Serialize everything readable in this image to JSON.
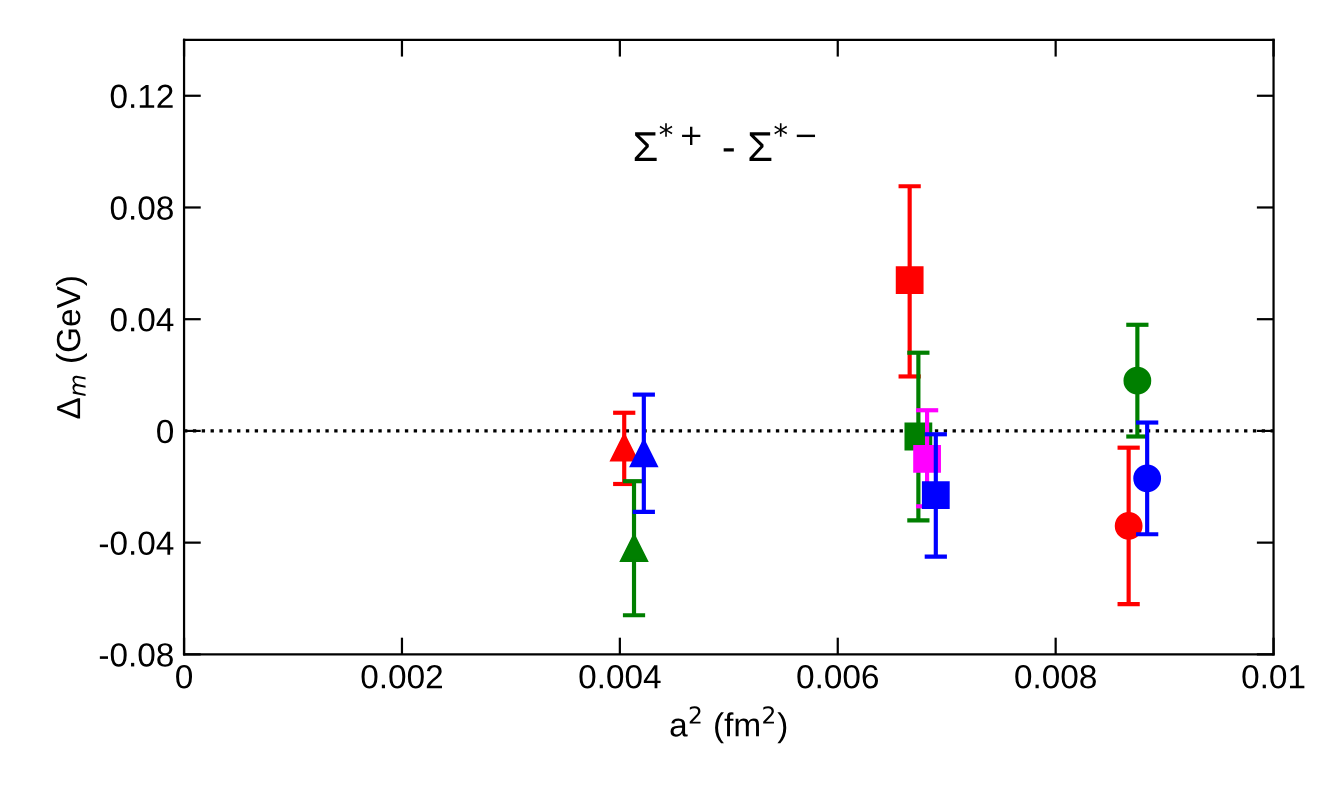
{
  "chart_data": {
    "type": "scatter",
    "title": "Σ$^{*+}$ - Σ$^{*−}$",
    "xlabel": "a$^{2}$ (fm$^{2}$)",
    "ylabel": "Δ$_{m}$ (GeV)",
    "xlim": [
      0,
      0.01
    ],
    "ylim": [
      -0.08,
      0.14
    ],
    "xticks": [
      0,
      {
        "value": 0.002,
        "label": "0.002"
      },
      {
        "value": 0.004,
        "label": "0.004"
      },
      {
        "value": 0.006,
        "label": "0.006"
      },
      {
        "value": 0.008,
        "label": "0.008"
      },
      {
        "value": 0.01,
        "label": "0.01"
      }
    ],
    "yticks": [
      {
        "value": -0.08,
        "label": "-0.08"
      },
      {
        "value": -0.04,
        "label": "-0.04"
      },
      0,
      {
        "value": 0.04,
        "label": "0.04"
      },
      {
        "value": 0.08,
        "label": "0.08"
      },
      {
        "value": 0.12,
        "label": "0.12"
      }
    ],
    "grid": false,
    "ref_lines": [
      {
        "axis": "y",
        "value": 0,
        "color": "#000000",
        "line_style": "dotted"
      }
    ],
    "series": [
      {
        "color": "#ff0000",
        "marker": "triangle",
        "x": [
          0.00404
        ],
        "values": [
          -0.006
        ],
        "errors": [
          [
            -0.019,
            0.0065
          ]
        ]
      },
      {
        "color": "#007f00",
        "marker": "triangle",
        "x": [
          0.00413
        ],
        "values": [
          -0.042
        ],
        "errors": [
          [
            -0.066,
            -0.018
          ]
        ]
      },
      {
        "color": "#0000ff",
        "marker": "triangle",
        "x": [
          0.00422
        ],
        "values": [
          -0.008
        ],
        "errors": [
          [
            -0.029,
            0.013
          ]
        ]
      },
      {
        "color": "#ff0000",
        "marker": "square",
        "x": [
          0.00666
        ],
        "values": [
          0.054
        ],
        "errors": [
          [
            0.0195,
            0.0876
          ]
        ]
      },
      {
        "color": "#007f00",
        "marker": "square",
        "x": [
          0.00674
        ],
        "values": [
          -0.002
        ],
        "errors": [
          [
            -0.032,
            0.028
          ]
        ]
      },
      {
        "color": "#ff00ff",
        "marker": "square",
        "x": [
          0.00682
        ],
        "values": [
          -0.01
        ],
        "errors": [
          [
            -0.027,
            0.0074
          ]
        ]
      },
      {
        "color": "#0000ff",
        "marker": "square",
        "x": [
          0.0069
        ],
        "values": [
          -0.023
        ],
        "errors": [
          [
            -0.045,
            -0.0012
          ]
        ]
      },
      {
        "color": "#ff0000",
        "marker": "circle",
        "x": [
          0.00867
        ],
        "values": [
          -0.034
        ],
        "errors": [
          [
            -0.062,
            -0.006
          ]
        ]
      },
      {
        "color": "#007f00",
        "marker": "circle",
        "x": [
          0.00875
        ],
        "values": [
          0.018
        ],
        "errors": [
          [
            -0.002,
            0.038
          ]
        ]
      },
      {
        "color": "#0000ff",
        "marker": "circle",
        "x": [
          0.00884
        ],
        "values": [
          -0.017
        ],
        "errors": [
          [
            -0.037,
            0.003
          ]
        ]
      }
    ]
  }
}
